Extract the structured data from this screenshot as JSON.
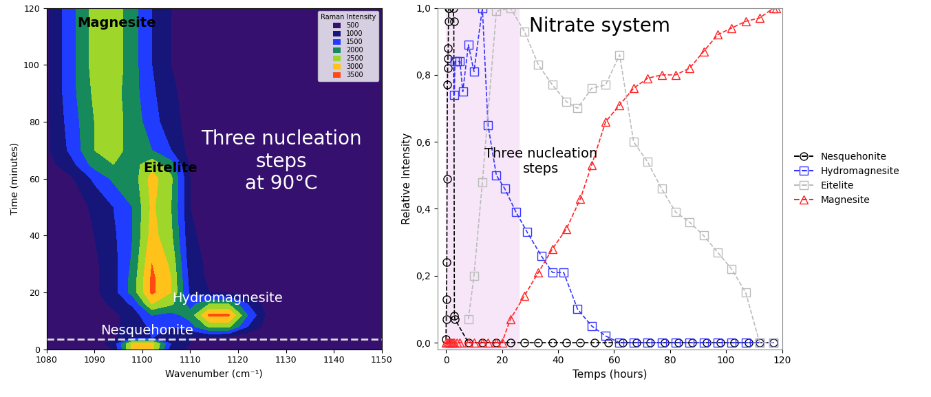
{
  "chart_data": [
    {
      "type": "heatmap",
      "xlabel": "Wavenumber (cm⁻¹)",
      "ylabel": "Time (minutes)",
      "xlim": [
        1080,
        1150
      ],
      "xticks": [
        1080,
        1090,
        1100,
        1110,
        1120,
        1130,
        1140,
        1150
      ],
      "ylim": [
        0,
        120
      ],
      "yticks": [
        0,
        20,
        40,
        60,
        80,
        100,
        120
      ],
      "x": [
        1080,
        1085,
        1090,
        1094,
        1098,
        1102,
        1106,
        1110,
        1114,
        1118,
        1122,
        1126,
        1130,
        1140,
        1150
      ],
      "y": [
        0,
        2,
        4,
        8,
        12,
        16,
        20,
        25,
        30,
        40,
        50,
        60,
        65,
        70,
        80,
        90,
        100,
        110,
        120
      ],
      "z": [
        [
          700,
          700,
          800,
          1000,
          3200,
          3200,
          1200,
          900,
          800,
          700,
          600,
          600,
          600,
          600,
          600
        ],
        [
          700,
          700,
          800,
          1200,
          3200,
          3200,
          1500,
          1000,
          800,
          700,
          600,
          600,
          600,
          600,
          600
        ],
        [
          600,
          600,
          700,
          900,
          1500,
          1500,
          1200,
          1000,
          900,
          800,
          600,
          600,
          500,
          500,
          500
        ],
        [
          600,
          600,
          700,
          900,
          1200,
          1600,
          1500,
          1800,
          2600,
          2600,
          1500,
          800,
          600,
          500,
          500
        ],
        [
          600,
          600,
          700,
          900,
          1200,
          2000,
          1800,
          2200,
          3600,
          3600,
          2000,
          900,
          600,
          500,
          500
        ],
        [
          600,
          600,
          800,
          1100,
          1600,
          3000,
          2600,
          1800,
          2500,
          2500,
          1500,
          800,
          600,
          500,
          500
        ],
        [
          600,
          700,
          900,
          1300,
          2200,
          3600,
          3000,
          1400,
          1000,
          900,
          800,
          600,
          500,
          500,
          500
        ],
        [
          600,
          700,
          900,
          1300,
          2200,
          3600,
          3000,
          1300,
          900,
          800,
          700,
          600,
          500,
          500,
          500
        ],
        [
          600,
          700,
          900,
          1300,
          2100,
          3500,
          2900,
          1200,
          900,
          800,
          700,
          600,
          500,
          500,
          500
        ],
        [
          600,
          700,
          1000,
          1400,
          2000,
          3200,
          2600,
          1100,
          800,
          700,
          600,
          500,
          500,
          500,
          500
        ],
        [
          600,
          700,
          1100,
          1500,
          2000,
          3100,
          2500,
          1000,
          800,
          700,
          600,
          500,
          500,
          500,
          500
        ],
        [
          700,
          900,
          1600,
          2100,
          2200,
          3200,
          2600,
          1000,
          700,
          600,
          500,
          500,
          500,
          500,
          500
        ],
        [
          800,
          1300,
          2200,
          2500,
          2300,
          2800,
          2200,
          900,
          700,
          600,
          500,
          500,
          500,
          500,
          500
        ],
        [
          900,
          1600,
          2500,
          2700,
          2300,
          2000,
          1500,
          800,
          600,
          500,
          500,
          500,
          500,
          500,
          500
        ],
        [
          900,
          1700,
          2500,
          2700,
          2300,
          1700,
          1200,
          800,
          600,
          500,
          500,
          500,
          500,
          500,
          500
        ],
        [
          900,
          1800,
          2600,
          2700,
          2200,
          1600,
          1100,
          800,
          600,
          500,
          500,
          500,
          500,
          500,
          500
        ],
        [
          900,
          1800,
          2700,
          2800,
          2200,
          1500,
          1000,
          700,
          600,
          500,
          500,
          500,
          500,
          500,
          500
        ],
        [
          900,
          1800,
          2700,
          2800,
          2200,
          1500,
          1000,
          700,
          600,
          500,
          500,
          500,
          500,
          500,
          500
        ],
        [
          900,
          1800,
          2700,
          2800,
          2200,
          1500,
          1000,
          700,
          600,
          500,
          500,
          500,
          500,
          500,
          500
        ]
      ],
      "colorbar": {
        "title": "Raman Intensity",
        "levels": [
          500,
          1000,
          1500,
          2000,
          2500,
          3000,
          3500
        ],
        "colors": [
          "#35106e",
          "#16167a",
          "#1f3cff",
          "#178a5c",
          "#9ed62a",
          "#ffc21a",
          "#ff4a12"
        ]
      },
      "legend": "upper right",
      "dashed_line": 3.5,
      "line_style": "dashed",
      "annotations": [
        {
          "text": "Magnesite",
          "color": "#000000"
        },
        {
          "text": "Eitelite",
          "color": "#000000"
        },
        {
          "text": "Hydromagnesite",
          "color": "#ffffff"
        },
        {
          "text": "Nesquehonite",
          "color": "#ffffff"
        },
        {
          "text": "Three nucleation\nsteps\nat 90°C",
          "color": "#ffffff"
        }
      ]
    },
    {
      "type": "line",
      "title": "Nitrate system",
      "xlabel": "Temps (hours)",
      "ylabel": "Relative Intensity",
      "xlim": [
        -3,
        120
      ],
      "xticks": [
        0,
        20,
        40,
        60,
        80,
        100,
        120
      ],
      "ylim": [
        -0.02,
        1.0
      ],
      "yticks": [
        {
          "value": 0.0,
          "label": "0,0"
        },
        {
          "value": 0.2,
          "label": "0,2"
        },
        {
          "value": 0.4,
          "label": "0,4"
        },
        {
          "value": 0.6,
          "label": "0,6"
        },
        {
          "value": 0.8,
          "label": "0,8"
        },
        {
          "value": 1.0,
          "label": "1,0"
        }
      ],
      "shaded_region": [
        0,
        26
      ],
      "shaded_color": "#f6e6f8",
      "annotations": [
        {
          "text": "Three nucleation\nsteps",
          "color": "#000000"
        }
      ],
      "legend": "right",
      "series": [
        {
          "name": "Nesquehonite",
          "color": "#000000",
          "marker": "o",
          "line_style": "dashed",
          "x": [
            0,
            0.1,
            0.2,
            0.3,
            0.4,
            0.5,
            0.6,
            0.7,
            0.8,
            0.9,
            1.0,
            1.2,
            2.6,
            2.8,
            3.0,
            3.2,
            8,
            13,
            18,
            23,
            28,
            33,
            38,
            43,
            48,
            53,
            58,
            63,
            68,
            73,
            78,
            83,
            88,
            93,
            98,
            103,
            108,
            112,
            117
          ],
          "values": [
            0.01,
            0.07,
            0.13,
            0.24,
            0.49,
            0.77,
            0.82,
            0.85,
            0.88,
            0.96,
            1.0,
            1.0,
            1.0,
            0.96,
            0.08,
            0.07,
            0,
            0,
            0,
            0,
            0,
            0,
            0,
            0,
            0,
            0,
            0,
            0,
            0,
            0,
            0,
            0,
            0,
            0,
            0,
            0,
            0,
            0,
            0
          ]
        },
        {
          "name": "Hydromagnesite",
          "color": "#3333ff",
          "marker": "s",
          "line_style": "dashed",
          "x": [
            3,
            3.2,
            4,
            5,
            6,
            8,
            10,
            13,
            15,
            18,
            21,
            25,
            29,
            34,
            38,
            42,
            47,
            52,
            57,
            62,
            67,
            72,
            77,
            82,
            87,
            92,
            97,
            102,
            107,
            112,
            117
          ],
          "values": [
            0.74,
            0.84,
            0.84,
            0.84,
            0.75,
            0.89,
            0.81,
            1.0,
            0.65,
            0.5,
            0.46,
            0.39,
            0.33,
            0.26,
            0.21,
            0.21,
            0.1,
            0.05,
            0.02,
            0,
            0,
            0,
            0,
            0,
            0,
            0,
            0,
            0,
            0,
            0,
            0
          ]
        },
        {
          "name": "Eitelite",
          "color": "#bbbbbb",
          "marker": "s",
          "line_style": "dashed",
          "x": [
            8,
            10,
            13,
            18,
            23,
            28,
            33,
            38,
            43,
            47,
            52,
            57,
            62,
            67,
            72,
            77,
            82,
            87,
            92,
            97,
            102,
            107,
            112,
            117
          ],
          "values": [
            0.07,
            0.2,
            0.48,
            0.99,
            1.0,
            0.93,
            0.83,
            0.77,
            0.72,
            0.7,
            0.76,
            0.77,
            0.86,
            0.6,
            0.54,
            0.46,
            0.39,
            0.36,
            0.32,
            0.27,
            0.22,
            0.15,
            0,
            0
          ]
        },
        {
          "name": "Magnesite",
          "color": "#ff2222",
          "marker": "^",
          "line_style": "dashed",
          "x": [
            0,
            0.5,
            1,
            1.5,
            2,
            2.5,
            3,
            4,
            5,
            8,
            10,
            13,
            15,
            18,
            20,
            23,
            28,
            33,
            38,
            43,
            48,
            52,
            57,
            62,
            67,
            72,
            77,
            82,
            87,
            92,
            97,
            102,
            107,
            112,
            117,
            118
          ],
          "values": [
            0,
            0,
            0,
            0,
            0,
            0,
            0,
            0,
            0,
            0,
            0,
            0,
            0,
            0,
            0,
            0.07,
            0.14,
            0.21,
            0.28,
            0.34,
            0.43,
            0.53,
            0.66,
            0.71,
            0.76,
            0.79,
            0.8,
            0.8,
            0.82,
            0.87,
            0.92,
            0.94,
            0.96,
            0.97,
            1.0,
            1.0
          ]
        }
      ]
    }
  ]
}
